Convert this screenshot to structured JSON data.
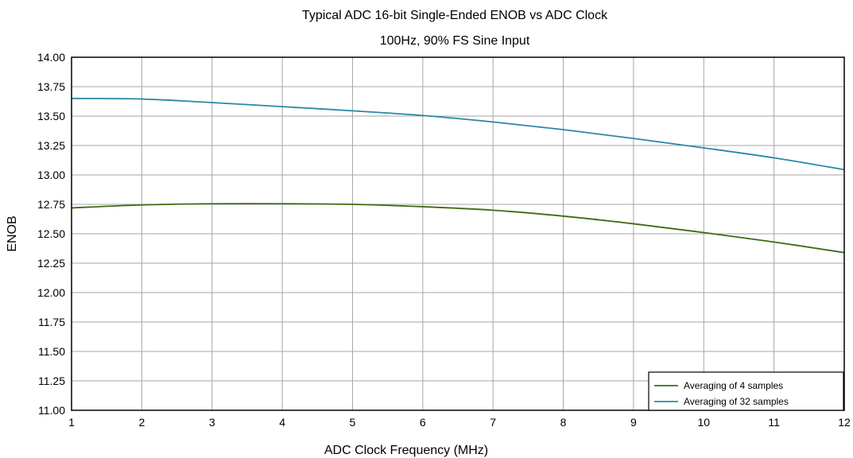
{
  "chart_data": {
    "type": "line",
    "title": "Typical ADC 16-bit Single-Ended ENOB vs ADC Clock",
    "subtitle": "100Hz, 90% FS Sine Input",
    "xlabel": "ADC Clock Frequency (MHz)",
    "ylabel": "ENOB",
    "xlim": [
      1,
      12
    ],
    "ylim": [
      11.0,
      14.0
    ],
    "x_ticks": [
      1,
      2,
      3,
      4,
      5,
      6,
      7,
      8,
      9,
      10,
      11,
      12
    ],
    "y_ticks": [
      "11.00",
      "11.25",
      "11.50",
      "11.75",
      "12.00",
      "12.25",
      "12.50",
      "12.75",
      "13.00",
      "13.25",
      "13.50",
      "13.75",
      "14.00"
    ],
    "grid": true,
    "legend_position": "bottom-right",
    "x": [
      1,
      2,
      3,
      4,
      5,
      6,
      7,
      8,
      9,
      10,
      11,
      12
    ],
    "series": [
      {
        "name": "Averaging of 4 samples",
        "color": "#3f6b12",
        "values": [
          12.72,
          12.745,
          12.755,
          12.755,
          12.75,
          12.73,
          12.7,
          12.65,
          12.585,
          12.51,
          12.43,
          12.34
        ]
      },
      {
        "name": "Averaging of 32 samples",
        "color": "#2a87a8",
        "values": [
          13.65,
          13.645,
          13.615,
          13.58,
          13.545,
          13.505,
          13.45,
          13.385,
          13.31,
          13.23,
          13.145,
          13.045
        ]
      }
    ]
  }
}
